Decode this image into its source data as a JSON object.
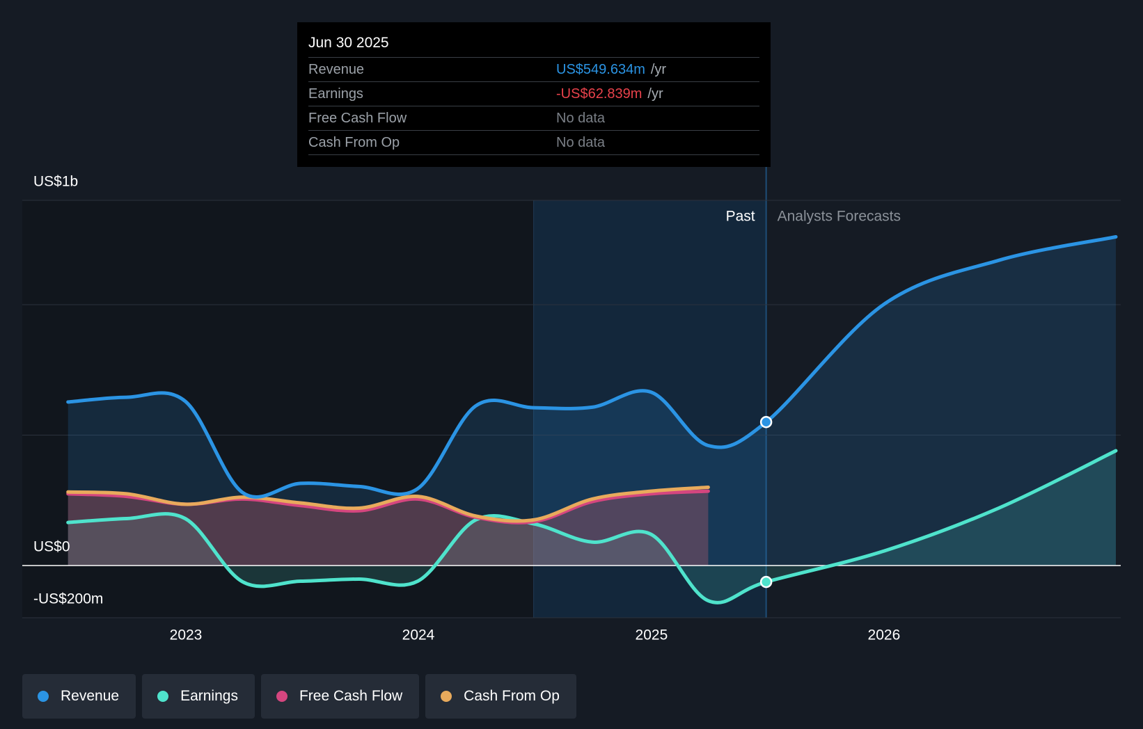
{
  "tooltip": {
    "date": "Jun 30 2025",
    "rows": [
      {
        "label": "Revenue",
        "value": "US$549.634m",
        "unit": "/yr",
        "color": "#2b94e4"
      },
      {
        "label": "Earnings",
        "value": "-US$62.839m",
        "unit": "/yr",
        "color": "#e8424b"
      },
      {
        "label": "Free Cash Flow",
        "value": "No data",
        "unit": "",
        "color": ""
      },
      {
        "label": "Cash From Op",
        "value": "No data",
        "unit": "",
        "color": ""
      }
    ]
  },
  "sections": {
    "past": "Past",
    "forecast": "Analysts Forecasts"
  },
  "chart_data": {
    "type": "area",
    "y_ticks": [
      {
        "value": 1400,
        "label": "US$1b"
      },
      {
        "value": 0,
        "label": "US$0"
      },
      {
        "value": -200,
        "label": "-US$200m"
      }
    ],
    "ylim": [
      -200,
      1400
    ],
    "x_ticks": [
      "2023",
      "2024",
      "2025",
      "2026"
    ],
    "grid": true,
    "legend_position": "bottom",
    "series": [
      {
        "name": "Revenue",
        "color": "#2b94e4",
        "points": [
          [
            "2022-06-30",
            627
          ],
          [
            "2022-09-30",
            645
          ],
          [
            "2022-12-31",
            630
          ],
          [
            "2023-03-31",
            280
          ],
          [
            "2023-06-30",
            315
          ],
          [
            "2023-09-30",
            303
          ],
          [
            "2023-12-31",
            295
          ],
          [
            "2024-03-31",
            612
          ],
          [
            "2024-06-30",
            605
          ],
          [
            "2024-09-30",
            607
          ],
          [
            "2024-12-31",
            665
          ],
          [
            "2025-03-31",
            460
          ],
          [
            "2025-06-30",
            550
          ],
          [
            "2025-12-31",
            1000
          ],
          [
            "2026-06-30",
            1170
          ],
          [
            "2026-12-31",
            1260
          ]
        ]
      },
      {
        "name": "Earnings",
        "color": "#4fe3cc",
        "points": [
          [
            "2022-06-30",
            165
          ],
          [
            "2022-09-30",
            180
          ],
          [
            "2022-12-31",
            180
          ],
          [
            "2023-03-31",
            -62
          ],
          [
            "2023-06-30",
            -60
          ],
          [
            "2023-09-30",
            -52
          ],
          [
            "2023-12-31",
            -60
          ],
          [
            "2024-03-31",
            175
          ],
          [
            "2024-06-30",
            160
          ],
          [
            "2024-09-30",
            90
          ],
          [
            "2024-12-31",
            120
          ],
          [
            "2025-03-31",
            -135
          ],
          [
            "2025-06-30",
            -63
          ],
          [
            "2025-12-31",
            55
          ],
          [
            "2026-06-30",
            220
          ],
          [
            "2026-12-31",
            440
          ]
        ]
      },
      {
        "name": "Free Cash Flow",
        "color": "#d5467f",
        "points": [
          [
            "2022-06-30",
            275
          ],
          [
            "2022-09-30",
            265
          ],
          [
            "2022-12-31",
            235
          ],
          [
            "2023-03-31",
            255
          ],
          [
            "2023-06-30",
            230
          ],
          [
            "2023-09-30",
            210
          ],
          [
            "2023-12-31",
            255
          ],
          [
            "2024-03-31",
            185
          ],
          [
            "2024-06-30",
            168
          ],
          [
            "2024-09-30",
            245
          ],
          [
            "2024-12-31",
            275
          ],
          [
            "2025-03-31",
            285
          ]
        ]
      },
      {
        "name": "Cash From Op",
        "color": "#e8aa5c",
        "points": [
          [
            "2022-06-30",
            282
          ],
          [
            "2022-09-30",
            275
          ],
          [
            "2022-12-31",
            235
          ],
          [
            "2023-03-31",
            262
          ],
          [
            "2023-06-30",
            240
          ],
          [
            "2023-09-30",
            220
          ],
          [
            "2023-12-31",
            265
          ],
          [
            "2024-03-31",
            190
          ],
          [
            "2024-06-30",
            175
          ],
          [
            "2024-09-30",
            255
          ],
          [
            "2024-12-31",
            285
          ],
          [
            "2025-03-31",
            300
          ]
        ]
      }
    ],
    "highlight_date": "2025-06-30"
  },
  "legend": [
    {
      "label": "Revenue",
      "color": "#2b94e4"
    },
    {
      "label": "Earnings",
      "color": "#4fe3cc"
    },
    {
      "label": "Free Cash Flow",
      "color": "#d5467f"
    },
    {
      "label": "Cash From Op",
      "color": "#e8aa5c"
    }
  ]
}
